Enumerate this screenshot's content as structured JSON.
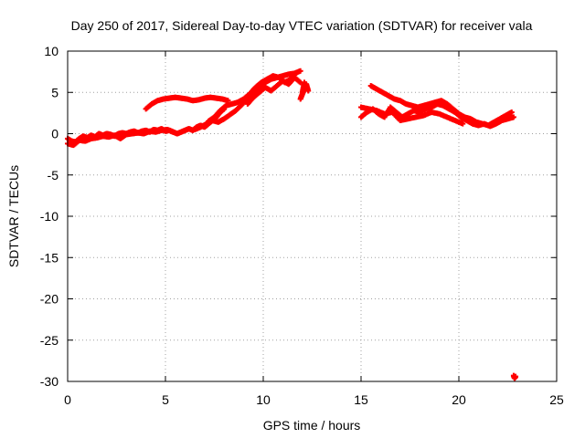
{
  "chart_data": {
    "type": "scatter",
    "title": "Day 250 of 2017, Sidereal Day-to-day VTEC variation (SDTVAR) for receiver vala",
    "xlabel": "GPS time / hours",
    "ylabel": "SDTVAR / TECUs",
    "xlim": [
      0,
      25
    ],
    "ylim": [
      -30,
      10
    ],
    "xticks": [
      0,
      5,
      10,
      15,
      20,
      25
    ],
    "yticks": [
      -30,
      -25,
      -20,
      -15,
      -10,
      -5,
      0,
      5,
      10
    ],
    "xtick_labels": [
      "0",
      "5",
      "10",
      "15",
      "20",
      "25"
    ],
    "ytick_labels": [
      "-30",
      "-25",
      "-20",
      "-15",
      "-10",
      "-5",
      "0",
      "5",
      "10"
    ],
    "grid": true,
    "marker": "+",
    "color": "#ff0000",
    "series": [
      {
        "name": "early baseline",
        "x": [
          0.0,
          0.2,
          0.4,
          0.6,
          0.8,
          1.0,
          1.2,
          1.4,
          1.6,
          1.8,
          2.0,
          2.2,
          2.4,
          2.6,
          2.8,
          3.0,
          3.2,
          3.4,
          3.6,
          3.8,
          4.0,
          4.2,
          4.4,
          4.6,
          4.8,
          5.0,
          5.2,
          5.4,
          5.6,
          5.8,
          6.0,
          6.2,
          6.4,
          6.6,
          6.8,
          7.0,
          7.2,
          7.4,
          7.6,
          7.8,
          8.0
        ],
        "y": [
          -0.6,
          -0.9,
          -1.0,
          -0.6,
          -0.3,
          -0.5,
          -0.2,
          -0.4,
          0.0,
          -0.2,
          0.0,
          -0.1,
          -0.3,
          0.0,
          0.1,
          0.0,
          0.2,
          0.3,
          0.1,
          0.3,
          0.4,
          0.2,
          0.5,
          0.4,
          0.6,
          0.3,
          0.4,
          0.2,
          0.0,
          0.2,
          0.4,
          0.6,
          0.4,
          0.8,
          1.0,
          0.8,
          1.2,
          1.6,
          2.0,
          2.6,
          3.0
        ]
      },
      {
        "name": "early secondary track",
        "x": [
          0.0,
          0.3,
          0.6,
          0.9,
          1.2,
          1.5,
          1.8,
          2.1,
          2.4,
          2.7,
          3.0,
          3.3,
          3.6,
          3.9,
          4.2,
          4.5,
          4.8,
          5.1,
          5.4
        ],
        "y": [
          -1.2,
          -1.4,
          -0.8,
          -0.9,
          -0.6,
          -0.5,
          -0.3,
          -0.4,
          -0.2,
          -0.6,
          -0.1,
          0.0,
          0.1,
          0.0,
          0.3,
          0.2,
          0.4,
          0.5,
          0.2
        ]
      },
      {
        "name": "upper arc",
        "x": [
          4.0,
          4.3,
          4.6,
          4.9,
          5.2,
          5.5,
          5.8,
          6.1,
          6.4,
          6.7,
          7.0,
          7.3,
          7.6,
          7.9,
          8.2
        ],
        "y": [
          3.0,
          3.6,
          4.0,
          4.2,
          4.3,
          4.4,
          4.3,
          4.2,
          4.0,
          4.1,
          4.3,
          4.4,
          4.3,
          4.2,
          4.0
        ]
      },
      {
        "name": "morning rise",
        "x": [
          6.5,
          6.8,
          7.1,
          7.4,
          7.7,
          8.0,
          8.3,
          8.6,
          8.9,
          9.2,
          9.5,
          9.8,
          10.1,
          10.4,
          10.7,
          11.0,
          11.3,
          11.6,
          11.9
        ],
        "y": [
          0.5,
          0.8,
          1.2,
          1.6,
          1.4,
          1.8,
          2.3,
          2.8,
          3.5,
          4.3,
          5.0,
          5.6,
          6.2,
          6.6,
          6.8,
          7.0,
          7.2,
          7.3,
          7.6
        ]
      },
      {
        "name": "morning rise upper",
        "x": [
          7.2,
          7.5,
          7.8,
          8.1,
          8.4,
          8.7,
          9.0,
          9.3,
          9.6,
          9.9,
          10.2,
          10.5,
          10.8,
          11.1,
          11.4,
          11.7
        ],
        "y": [
          1.5,
          2.0,
          2.8,
          3.4,
          3.6,
          3.8,
          4.2,
          4.8,
          5.6,
          6.2,
          6.6,
          7.0,
          6.8,
          6.2,
          6.6,
          7.4
        ]
      },
      {
        "name": "midday tail",
        "x": [
          9.2,
          9.5,
          9.8,
          10.1,
          10.4,
          10.7,
          11.0,
          11.3,
          11.6,
          11.9
        ],
        "y": [
          3.6,
          4.4,
          5.0,
          5.6,
          5.2,
          5.8,
          6.4,
          6.0,
          6.8,
          6.2
        ]
      },
      {
        "name": "noon fragment",
        "x": [
          11.9,
          12.0,
          12.1,
          12.2,
          12.3,
          12.1,
          12.0
        ],
        "y": [
          4.2,
          4.8,
          5.4,
          6.0,
          5.2,
          6.2,
          5.0
        ]
      },
      {
        "name": "afternoon band",
        "x": [
          15.0,
          15.3,
          15.6,
          15.9,
          16.2,
          16.5,
          16.8,
          17.1,
          17.4,
          17.7,
          18.0,
          18.3,
          18.6,
          18.9,
          19.2,
          19.5,
          19.8,
          20.1,
          20.4,
          20.7,
          21.0,
          21.3,
          21.6,
          21.9,
          22.2,
          22.5,
          22.8
        ],
        "y": [
          2.0,
          2.6,
          3.0,
          2.4,
          2.0,
          3.2,
          2.6,
          2.0,
          2.4,
          2.8,
          2.6,
          3.0,
          3.2,
          3.6,
          3.4,
          3.0,
          2.6,
          2.0,
          1.6,
          1.2,
          1.0,
          1.2,
          0.9,
          1.2,
          1.6,
          1.8,
          2.0
        ]
      },
      {
        "name": "afternoon band upper",
        "x": [
          15.5,
          15.8,
          16.1,
          16.4,
          16.7,
          17.0,
          17.3,
          17.6,
          17.9,
          18.2,
          18.5,
          18.8,
          19.1,
          19.4,
          19.7,
          20.0,
          20.3,
          20.6,
          20.9,
          21.2,
          21.5,
          21.8,
          22.1,
          22.4,
          22.7
        ],
        "y": [
          5.8,
          5.4,
          5.0,
          4.6,
          4.2,
          4.0,
          3.6,
          3.4,
          3.2,
          3.4,
          3.6,
          3.8,
          4.0,
          3.6,
          3.0,
          2.4,
          2.0,
          1.8,
          1.4,
          1.2,
          1.0,
          1.4,
          1.8,
          2.2,
          2.6
        ]
      },
      {
        "name": "afternoon band lower",
        "x": [
          15.0,
          15.4,
          15.8,
          16.2,
          16.6,
          17.0,
          17.4,
          17.8,
          18.2,
          18.6,
          19.0,
          19.4,
          19.8,
          20.2
        ],
        "y": [
          3.2,
          3.0,
          2.8,
          2.4,
          2.6,
          1.6,
          1.8,
          2.0,
          2.2,
          2.6,
          2.4,
          2.0,
          1.6,
          1.2
        ]
      },
      {
        "name": "outlier",
        "x": [
          22.8,
          22.85,
          22.9
        ],
        "y": [
          -29.3,
          -29.6,
          -29.4
        ]
      }
    ]
  }
}
